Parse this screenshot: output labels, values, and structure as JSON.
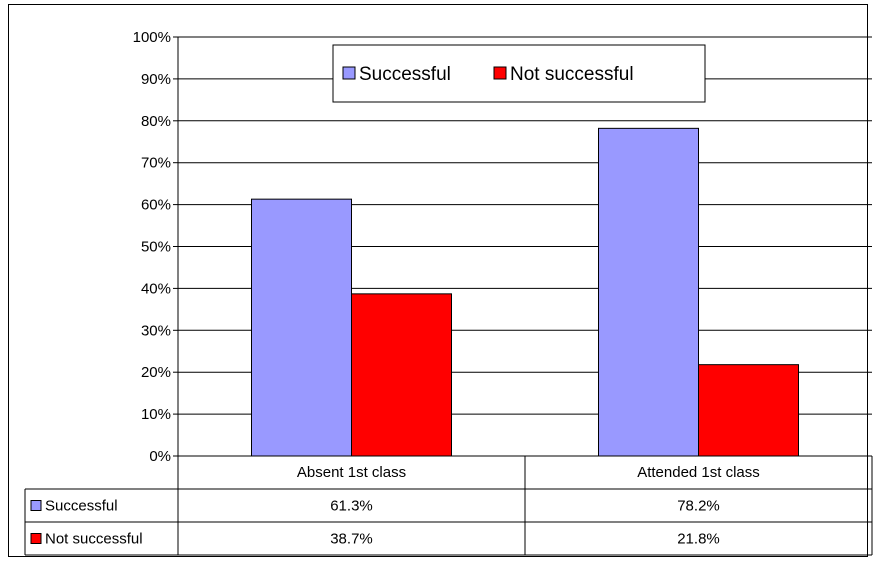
{
  "chart_data": {
    "type": "bar",
    "title": "",
    "xlabel": "",
    "ylabel": "",
    "ylim": [
      0,
      100
    ],
    "y_ticks": [
      "0%",
      "10%",
      "20%",
      "30%",
      "40%",
      "50%",
      "60%",
      "70%",
      "80%",
      "90%",
      "100%"
    ],
    "categories": [
      "Absent 1st class",
      "Attended 1st class"
    ],
    "series": [
      {
        "name": "Successful",
        "values": [
          61.3,
          78.2
        ],
        "labels": [
          "61.3%",
          "78.2%"
        ],
        "color": "#9999ff"
      },
      {
        "name": "Not successful",
        "values": [
          38.7,
          21.8
        ],
        "labels": [
          "38.7%",
          "21.8%"
        ],
        "color": "#ff0000"
      }
    ],
    "grid": true,
    "legend": "top-center",
    "data_table": true
  }
}
